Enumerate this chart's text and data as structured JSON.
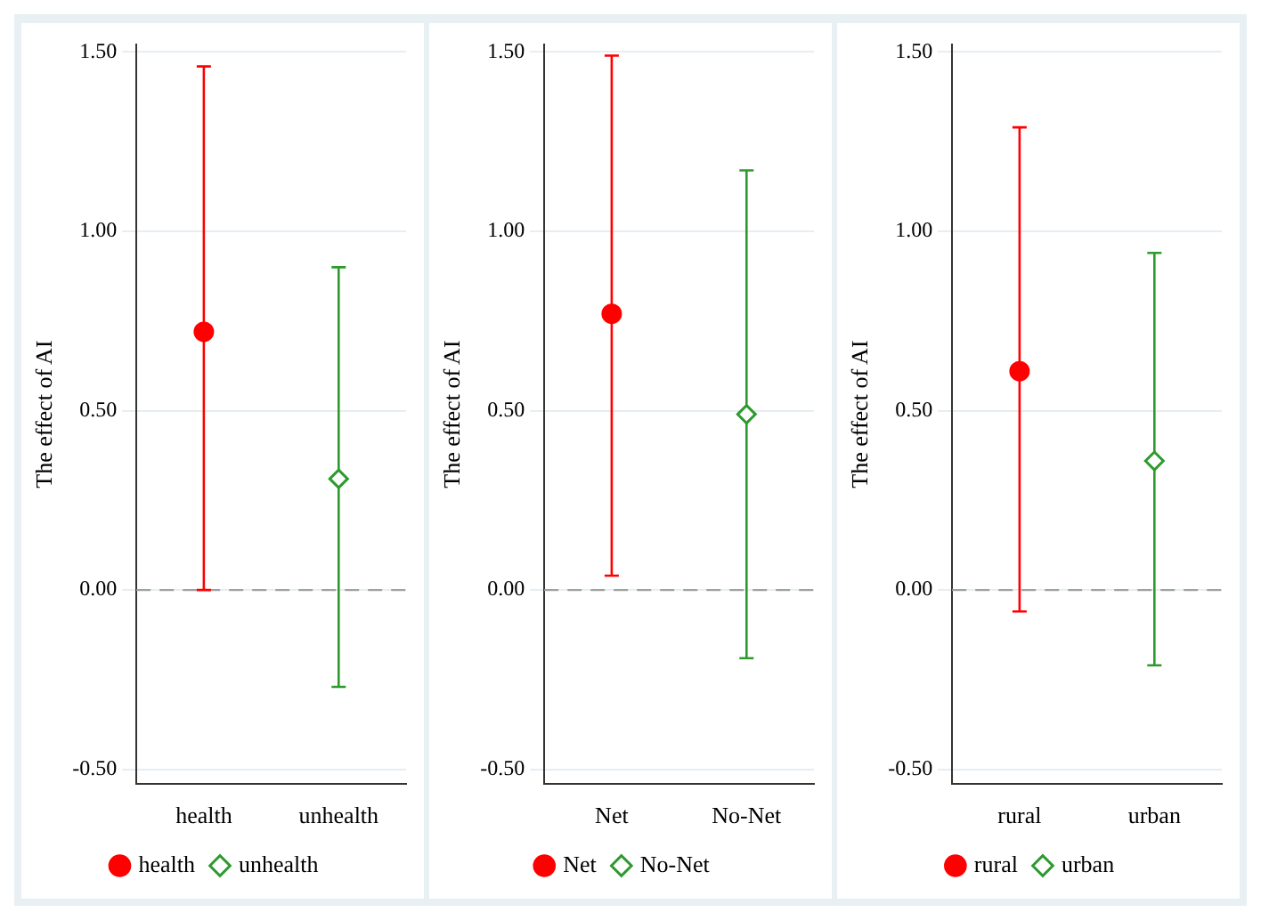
{
  "chart_data": [
    {
      "type": "scatter",
      "ylabel": "The effect of AI",
      "categories": [
        "health",
        "unhealth"
      ],
      "ylim": [
        -0.54,
        1.52
      ],
      "yticks": [
        {
          "value": -0.5,
          "label": "-0.50"
        },
        {
          "value": 0,
          "label": "0.00"
        },
        {
          "value": 0.5,
          "label": "0.50"
        },
        {
          "value": 1,
          "label": "1.00"
        },
        {
          "value": 1.5,
          "label": "1.50"
        }
      ],
      "grid": "y",
      "legend": "bottom",
      "ref_lines": [
        {
          "axis": "y",
          "value": 0,
          "color": "#a0a0a0",
          "line_style": "dashed"
        }
      ],
      "series": [
        {
          "name": "health",
          "color": "#ff0000",
          "marker": "circle",
          "values": [
            0.72,
            null
          ],
          "errors": [
            [
              0.0,
              1.46
            ],
            null
          ]
        },
        {
          "name": "unhealth",
          "color": "#2e9a2e",
          "marker": "diamond",
          "values": [
            null,
            0.31
          ],
          "errors": [
            null,
            [
              -0.27,
              0.9
            ]
          ]
        }
      ]
    },
    {
      "type": "scatter",
      "ylabel": "The effect of AI",
      "categories": [
        "Net",
        "No-Net"
      ],
      "ylim": [
        -0.54,
        1.52
      ],
      "yticks": [
        {
          "value": -0.5,
          "label": "-0.50"
        },
        {
          "value": 0,
          "label": "0.00"
        },
        {
          "value": 0.5,
          "label": "0.50"
        },
        {
          "value": 1,
          "label": "1.00"
        },
        {
          "value": 1.5,
          "label": "1.50"
        }
      ],
      "grid": "y",
      "legend": "bottom",
      "ref_lines": [
        {
          "axis": "y",
          "value": 0,
          "color": "#a0a0a0",
          "line_style": "dashed"
        }
      ],
      "series": [
        {
          "name": "Net",
          "color": "#ff0000",
          "marker": "circle",
          "values": [
            0.77,
            null
          ],
          "errors": [
            [
              0.04,
              1.49
            ],
            null
          ]
        },
        {
          "name": "No-Net",
          "color": "#2e9a2e",
          "marker": "diamond",
          "values": [
            null,
            0.49
          ],
          "errors": [
            null,
            [
              -0.19,
              1.17
            ]
          ]
        }
      ]
    },
    {
      "type": "scatter",
      "ylabel": "The effect of AI",
      "categories": [
        "rural",
        "urban"
      ],
      "ylim": [
        -0.54,
        1.52
      ],
      "yticks": [
        {
          "value": -0.5,
          "label": "-0.50"
        },
        {
          "value": 0,
          "label": "0.00"
        },
        {
          "value": 0.5,
          "label": "0.50"
        },
        {
          "value": 1,
          "label": "1.00"
        },
        {
          "value": 1.5,
          "label": "1.50"
        }
      ],
      "grid": "y",
      "legend": "bottom",
      "ref_lines": [
        {
          "axis": "y",
          "value": 0,
          "color": "#a0a0a0",
          "line_style": "dashed"
        }
      ],
      "series": [
        {
          "name": "rural",
          "color": "#ff0000",
          "marker": "circle",
          "values": [
            0.61,
            null
          ],
          "errors": [
            [
              -0.06,
              1.29
            ],
            null
          ]
        },
        {
          "name": "urban",
          "color": "#2e9a2e",
          "marker": "diamond",
          "values": [
            null,
            0.36
          ],
          "errors": [
            null,
            [
              -0.21,
              0.94
            ]
          ]
        }
      ]
    }
  ]
}
